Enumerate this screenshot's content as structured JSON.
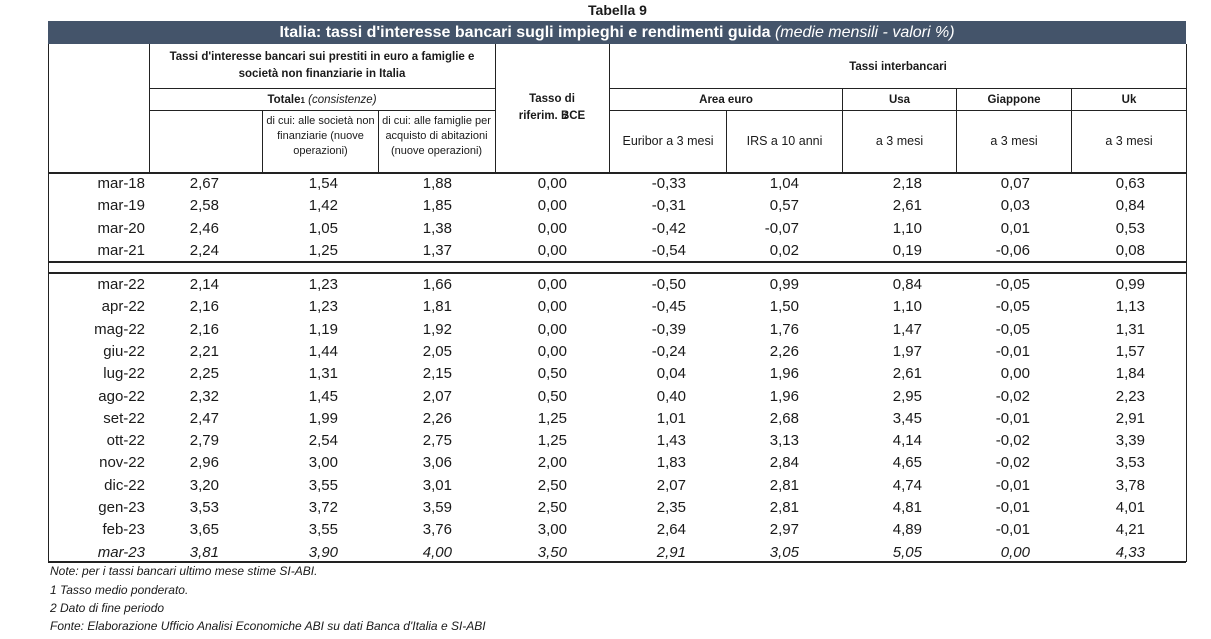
{
  "table_label": "Tabella 9",
  "title": {
    "main": "Italia: tassi d'interesse bancari sugli impieghi e rendimenti guida",
    "sub": "(medie mensili - valori %)"
  },
  "headers": {
    "loans_group": "Tassi d'interesse bancari sui prestiti in euro a famiglie e società non finanziarie in Italia",
    "totale": "Totale",
    "totale_sup": "1",
    "totale_note": "(consistenze)",
    "companies": "di cui: alle società non finanziarie (nuove operazioni)",
    "families": "di cui: alle famiglie per acquisto di abitazioni (nuove operazioni)",
    "ecb": "Tasso di riferim. BCE",
    "ecb_sup": "2",
    "interbank": "Tassi interbancari",
    "area_euro": "Area euro",
    "usa": "Usa",
    "japan": "Giappone",
    "uk": "Uk",
    "euribor": "Euribor a 3 mesi",
    "irs": "IRS a 10 anni",
    "usa_sub": "a 3 mesi",
    "japan_sub": "a 3 mesi",
    "uk_sub": "a 3 mesi"
  },
  "annual_rows": [
    [
      "mar-18",
      "2,67",
      "1,54",
      "1,88",
      "0,00",
      "-0,33",
      "1,04",
      "2,18",
      "0,07",
      "0,63"
    ],
    [
      "mar-19",
      "2,58",
      "1,42",
      "1,85",
      "0,00",
      "-0,31",
      "0,57",
      "2,61",
      "0,03",
      "0,84"
    ],
    [
      "mar-20",
      "2,46",
      "1,05",
      "1,38",
      "0,00",
      "-0,42",
      "-0,07",
      "1,10",
      "0,01",
      "0,53"
    ],
    [
      "mar-21",
      "2,24",
      "1,25",
      "1,37",
      "0,00",
      "-0,54",
      "0,02",
      "0,19",
      "-0,06",
      "0,08"
    ]
  ],
  "monthly_rows": [
    [
      "mar-22",
      "2,14",
      "1,23",
      "1,66",
      "0,00",
      "-0,50",
      "0,99",
      "0,84",
      "-0,05",
      "0,99"
    ],
    [
      "apr-22",
      "2,16",
      "1,23",
      "1,81",
      "0,00",
      "-0,45",
      "1,50",
      "1,10",
      "-0,05",
      "1,13"
    ],
    [
      "mag-22",
      "2,16",
      "1,19",
      "1,92",
      "0,00",
      "-0,39",
      "1,76",
      "1,47",
      "-0,05",
      "1,31"
    ],
    [
      "giu-22",
      "2,21",
      "1,44",
      "2,05",
      "0,00",
      "-0,24",
      "2,26",
      "1,97",
      "-0,01",
      "1,57"
    ],
    [
      "lug-22",
      "2,25",
      "1,31",
      "2,15",
      "0,50",
      "0,04",
      "1,96",
      "2,61",
      "0,00",
      "1,84"
    ],
    [
      "ago-22",
      "2,32",
      "1,45",
      "2,07",
      "0,50",
      "0,40",
      "1,96",
      "2,95",
      "-0,02",
      "2,23"
    ],
    [
      "set-22",
      "2,47",
      "1,99",
      "2,26",
      "1,25",
      "1,01",
      "2,68",
      "3,45",
      "-0,01",
      "2,91"
    ],
    [
      "ott-22",
      "2,79",
      "2,54",
      "2,75",
      "1,25",
      "1,43",
      "3,13",
      "4,14",
      "-0,02",
      "3,39"
    ],
    [
      "nov-22",
      "2,96",
      "3,00",
      "3,06",
      "2,00",
      "1,83",
      "2,84",
      "4,65",
      "-0,02",
      "3,53"
    ],
    [
      "dic-22",
      "3,20",
      "3,55",
      "3,01",
      "2,50",
      "2,07",
      "2,81",
      "4,74",
      "-0,01",
      "3,78"
    ],
    [
      "gen-23",
      "3,53",
      "3,72",
      "3,59",
      "2,50",
      "2,35",
      "2,81",
      "4,81",
      "-0,01",
      "4,01"
    ],
    [
      "feb-23",
      "3,65",
      "3,55",
      "3,76",
      "3,00",
      "2,64",
      "2,97",
      "4,89",
      "-0,01",
      "4,21"
    ],
    [
      "mar-23",
      "3,81",
      "3,90",
      "4,00",
      "3,50",
      "2,91",
      "3,05",
      "5,05",
      "0,00",
      "4,33"
    ]
  ],
  "estimate_row": "mar-23",
  "notes": [
    "Note: per i tassi bancari ultimo mese stime SI-ABI.",
    "1 Tasso medio ponderato.",
    "2 Dato di fine periodo",
    "Fonte: Elaborazione Ufficio Analisi Economiche ABI su dati Banca d'Italia e SI-ABI"
  ]
}
